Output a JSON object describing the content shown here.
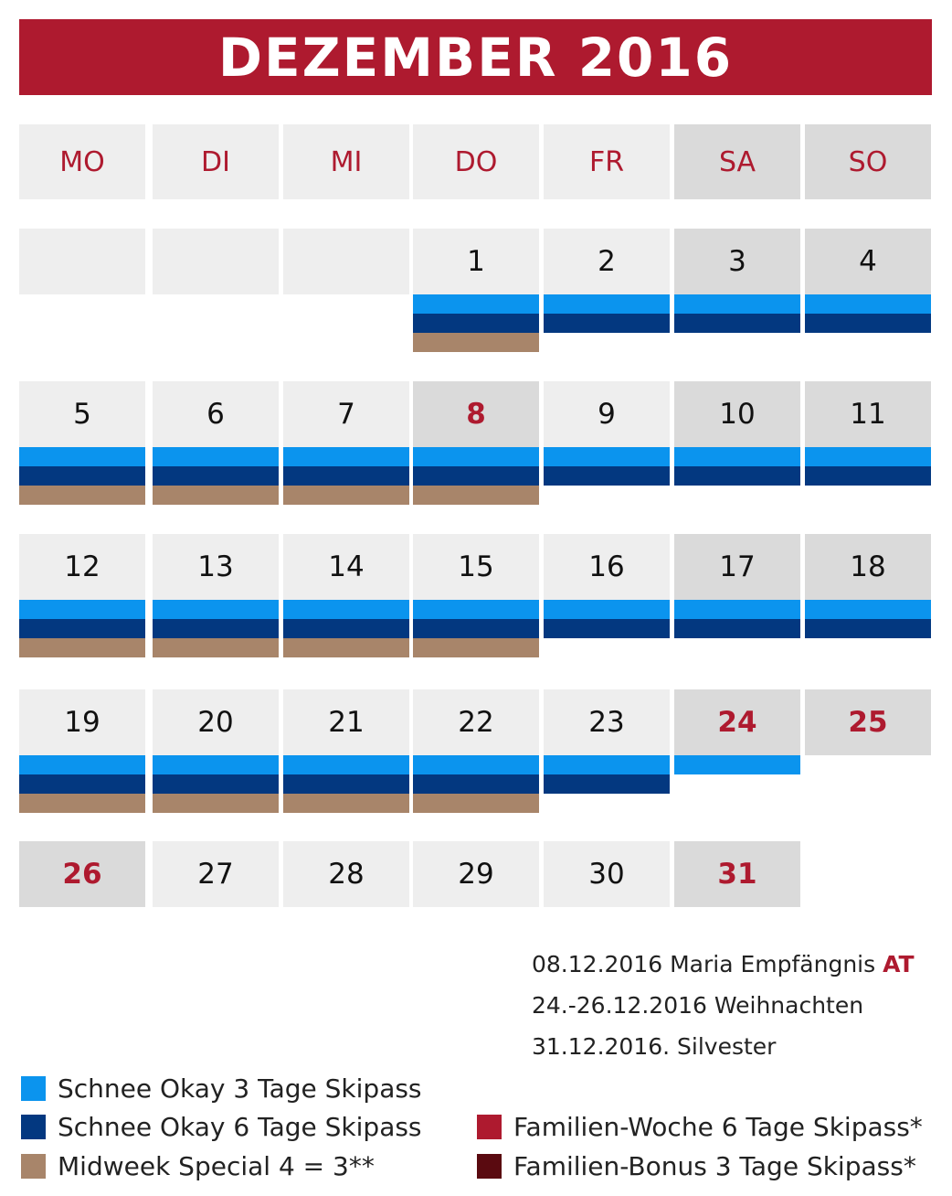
{
  "title": "DEZEMBER 2016",
  "weekdays": [
    {
      "label": "MO",
      "weekend": false
    },
    {
      "label": "DI",
      "weekend": false
    },
    {
      "label": "MI",
      "weekend": false
    },
    {
      "label": "DO",
      "weekend": false
    },
    {
      "label": "FR",
      "weekend": false
    },
    {
      "label": "SA",
      "weekend": true
    },
    {
      "label": "SO",
      "weekend": true
    }
  ],
  "colors": {
    "accent": "#ae1a2f",
    "cell": "#eeeeee",
    "cell_weekend": "#dadada",
    "schnee_3": "#0b94ee",
    "schnee_6": "#033880",
    "midweek": "#a8856a",
    "familien_woche": "#ae1a2f",
    "familien_bonus": "#5a0a10"
  },
  "weeks": [
    [
      {
        "blank": true
      },
      {
        "blank": true
      },
      {
        "blank": true
      },
      {
        "day": "1",
        "bars": [
          "light",
          "dark",
          "brown"
        ]
      },
      {
        "day": "2",
        "bars": [
          "light",
          "dark"
        ]
      },
      {
        "day": "3",
        "bars": [
          "light",
          "dark"
        ]
      },
      {
        "day": "4",
        "bars": [
          "light",
          "dark"
        ]
      }
    ],
    [
      {
        "day": "5",
        "bars": [
          "light",
          "dark",
          "brown"
        ]
      },
      {
        "day": "6",
        "bars": [
          "light",
          "dark",
          "brown"
        ]
      },
      {
        "day": "7",
        "bars": [
          "light",
          "dark",
          "brown"
        ]
      },
      {
        "day": "8",
        "holiday": true,
        "bars": [
          "light",
          "dark",
          "brown"
        ]
      },
      {
        "day": "9",
        "bars": [
          "light",
          "dark"
        ]
      },
      {
        "day": "10",
        "bars": [
          "light",
          "dark"
        ]
      },
      {
        "day": "11",
        "bars": [
          "light",
          "dark"
        ]
      }
    ],
    [
      {
        "day": "12",
        "bars": [
          "light",
          "dark",
          "brown"
        ]
      },
      {
        "day": "13",
        "bars": [
          "light",
          "dark",
          "brown"
        ]
      },
      {
        "day": "14",
        "bars": [
          "light",
          "dark",
          "brown"
        ]
      },
      {
        "day": "15",
        "bars": [
          "light",
          "dark",
          "brown"
        ]
      },
      {
        "day": "16",
        "bars": [
          "light",
          "dark"
        ]
      },
      {
        "day": "17",
        "bars": [
          "light",
          "dark"
        ]
      },
      {
        "day": "18",
        "bars": [
          "light",
          "dark"
        ]
      }
    ],
    [
      {
        "day": "19",
        "bars": [
          "light",
          "dark",
          "brown"
        ]
      },
      {
        "day": "20",
        "bars": [
          "light",
          "dark",
          "brown"
        ]
      },
      {
        "day": "21",
        "bars": [
          "light",
          "dark",
          "brown"
        ]
      },
      {
        "day": "22",
        "bars": [
          "light",
          "dark",
          "brown"
        ]
      },
      {
        "day": "23",
        "bars": [
          "light",
          "dark"
        ]
      },
      {
        "day": "24",
        "holiday": true,
        "bars": [
          "light"
        ]
      },
      {
        "day": "25",
        "holiday": true,
        "bars": []
      }
    ],
    [
      {
        "day": "26",
        "holiday": true,
        "bars": []
      },
      {
        "day": "27",
        "bars": []
      },
      {
        "day": "28",
        "bars": []
      },
      {
        "day": "29",
        "bars": []
      },
      {
        "day": "30",
        "bars": []
      },
      {
        "day": "31",
        "holiday": true,
        "bars": []
      },
      {
        "blank": true,
        "empty": true
      }
    ]
  ],
  "holidays": [
    {
      "text": "08.12.2016 Maria Empfängnis",
      "code": "AT"
    },
    {
      "text": "24.-26.12.2016 Weihnachten",
      "code": ""
    },
    {
      "text": "31.12.2016. Silvester",
      "code": ""
    }
  ],
  "legend": [
    {
      "label": "Schnee Okay 3 Tage Skipass",
      "color": "#0b94ee"
    },
    {
      "label": "Schnee Okay 6 Tage Skipass",
      "color": "#033880"
    },
    {
      "label": "Midweek Special 4 = 3**",
      "color": "#a8856a"
    },
    {
      "label": "Familien-Woche 6 Tage Skipass*",
      "color": "#ae1a2f"
    },
    {
      "label": "Familien-Bonus 3 Tage Skipass*",
      "color": "#5a0a10"
    }
  ]
}
